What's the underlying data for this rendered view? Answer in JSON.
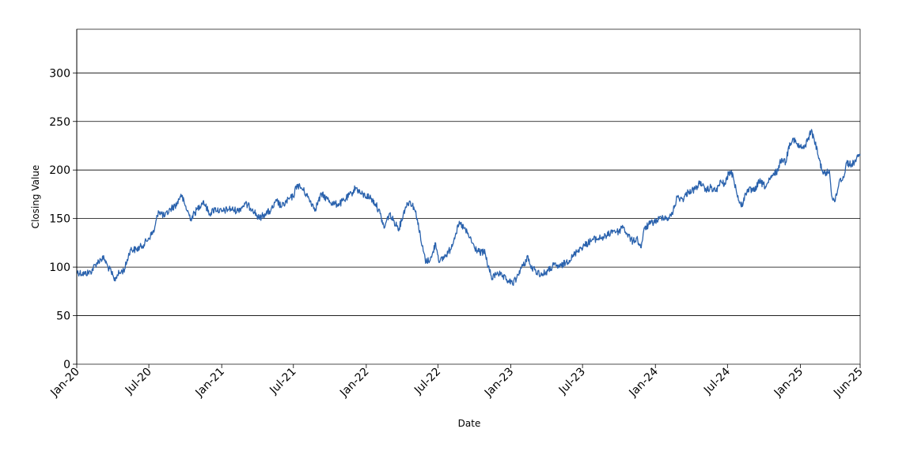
{
  "chart_data": {
    "type": "line",
    "title": "",
    "xlabel": "Date",
    "ylabel": "Closing Value",
    "x_start": "2020-01-01",
    "x_end": "2025-06-01",
    "xticks": [
      {
        "date": "2020-01-01",
        "label": "Jan-20"
      },
      {
        "date": "2020-07-01",
        "label": "Jul-20"
      },
      {
        "date": "2021-01-01",
        "label": "Jan-21"
      },
      {
        "date": "2021-07-01",
        "label": "Jul-21"
      },
      {
        "date": "2022-01-01",
        "label": "Jan-22"
      },
      {
        "date": "2022-07-01",
        "label": "Jul-22"
      },
      {
        "date": "2023-01-01",
        "label": "Jan-23"
      },
      {
        "date": "2023-07-01",
        "label": "Jul-23"
      },
      {
        "date": "2024-01-01",
        "label": "Jan-24"
      },
      {
        "date": "2024-07-01",
        "label": "Jul-24"
      },
      {
        "date": "2025-01-01",
        "label": "Jan-25"
      },
      {
        "date": "2025-06-01",
        "label": "Jun-25"
      }
    ],
    "yticks": [
      0,
      50,
      100,
      150,
      200,
      250,
      300
    ],
    "ylim": [
      0,
      345
    ],
    "grid": "horizontal",
    "line_color": "#2a62ad",
    "series": [
      {
        "points": [
          [
            "2020-01-01",
            95
          ],
          [
            "2020-01-20",
            93
          ],
          [
            "2020-02-05",
            95
          ],
          [
            "2020-02-20",
            104
          ],
          [
            "2020-03-01",
            108
          ],
          [
            "2020-03-10",
            109
          ],
          [
            "2020-03-20",
            100
          ],
          [
            "2020-03-28",
            95
          ],
          [
            "2020-04-05",
            86
          ],
          [
            "2020-04-12",
            92
          ],
          [
            "2020-04-22",
            95
          ],
          [
            "2020-05-01",
            98
          ],
          [
            "2020-05-15",
            118
          ],
          [
            "2020-05-30",
            118
          ],
          [
            "2020-06-15",
            122
          ],
          [
            "2020-07-01",
            130
          ],
          [
            "2020-07-15",
            138
          ],
          [
            "2020-07-25",
            158
          ],
          [
            "2020-08-10",
            152
          ],
          [
            "2020-08-25",
            160
          ],
          [
            "2020-09-10",
            165
          ],
          [
            "2020-09-20",
            175
          ],
          [
            "2020-10-01",
            163
          ],
          [
            "2020-10-15",
            150
          ],
          [
            "2020-11-01",
            160
          ],
          [
            "2020-11-15",
            168
          ],
          [
            "2020-12-01",
            155
          ],
          [
            "2020-12-15",
            160
          ],
          [
            "2021-01-01",
            157
          ],
          [
            "2021-01-20",
            160
          ],
          [
            "2021-02-10",
            158
          ],
          [
            "2021-03-01",
            165
          ],
          [
            "2021-03-20",
            160
          ],
          [
            "2021-04-05",
            150
          ],
          [
            "2021-04-20",
            155
          ],
          [
            "2021-05-05",
            158
          ],
          [
            "2021-05-20",
            168
          ],
          [
            "2021-06-01",
            162
          ],
          [
            "2021-06-20",
            170
          ],
          [
            "2021-07-01",
            173
          ],
          [
            "2021-07-10",
            185
          ],
          [
            "2021-07-25",
            180
          ],
          [
            "2021-08-10",
            170
          ],
          [
            "2021-08-25",
            160
          ],
          [
            "2021-09-10",
            175
          ],
          [
            "2021-09-25",
            170
          ],
          [
            "2021-10-10",
            165
          ],
          [
            "2021-10-25",
            165
          ],
          [
            "2021-11-10",
            170
          ],
          [
            "2021-11-25",
            176
          ],
          [
            "2021-12-05",
            182
          ],
          [
            "2021-12-20",
            175
          ],
          [
            "2022-01-10",
            172
          ],
          [
            "2022-01-25",
            165
          ],
          [
            "2022-02-05",
            155
          ],
          [
            "2022-02-15",
            140
          ],
          [
            "2022-02-28",
            155
          ],
          [
            "2022-03-10",
            148
          ],
          [
            "2022-03-25",
            140
          ],
          [
            "2022-04-10",
            162
          ],
          [
            "2022-04-20",
            168
          ],
          [
            "2022-05-01",
            162
          ],
          [
            "2022-05-10",
            150
          ],
          [
            "2022-05-20",
            125
          ],
          [
            "2022-06-01",
            105
          ],
          [
            "2022-06-15",
            110
          ],
          [
            "2022-06-25",
            125
          ],
          [
            "2022-07-05",
            105
          ],
          [
            "2022-07-20",
            112
          ],
          [
            "2022-08-01",
            118
          ],
          [
            "2022-08-15",
            135
          ],
          [
            "2022-08-25",
            145
          ],
          [
            "2022-09-05",
            140
          ],
          [
            "2022-09-20",
            130
          ],
          [
            "2022-10-01",
            120
          ],
          [
            "2022-10-15",
            115
          ],
          [
            "2022-10-28",
            115
          ],
          [
            "2022-11-05",
            100
          ],
          [
            "2022-11-15",
            88
          ],
          [
            "2022-11-28",
            95
          ],
          [
            "2022-12-10",
            90
          ],
          [
            "2022-12-25",
            86
          ],
          [
            "2023-01-05",
            83
          ],
          [
            "2023-01-15",
            88
          ],
          [
            "2023-01-25",
            98
          ],
          [
            "2023-02-05",
            103
          ],
          [
            "2023-02-12",
            112
          ],
          [
            "2023-02-20",
            100
          ],
          [
            "2023-03-05",
            96
          ],
          [
            "2023-03-20",
            92
          ],
          [
            "2023-04-05",
            96
          ],
          [
            "2023-04-20",
            102
          ],
          [
            "2023-05-05",
            100
          ],
          [
            "2023-05-20",
            105
          ],
          [
            "2023-06-05",
            110
          ],
          [
            "2023-06-20",
            118
          ],
          [
            "2023-07-05",
            122
          ],
          [
            "2023-07-25",
            128
          ],
          [
            "2023-08-15",
            130
          ],
          [
            "2023-09-01",
            132
          ],
          [
            "2023-09-15",
            138
          ],
          [
            "2023-10-01",
            136
          ],
          [
            "2023-10-10",
            143
          ],
          [
            "2023-10-20",
            135
          ],
          [
            "2023-11-05",
            126
          ],
          [
            "2023-11-15",
            130
          ],
          [
            "2023-11-25",
            120
          ],
          [
            "2023-12-05",
            140
          ],
          [
            "2023-12-20",
            145
          ],
          [
            "2024-01-05",
            148
          ],
          [
            "2024-01-20",
            152
          ],
          [
            "2024-02-05",
            150
          ],
          [
            "2024-02-15",
            158
          ],
          [
            "2024-02-25",
            172
          ],
          [
            "2024-03-10",
            170
          ],
          [
            "2024-03-25",
            178
          ],
          [
            "2024-04-10",
            180
          ],
          [
            "2024-04-25",
            188
          ],
          [
            "2024-05-05",
            178
          ],
          [
            "2024-05-20",
            182
          ],
          [
            "2024-06-01",
            178
          ],
          [
            "2024-06-15",
            188
          ],
          [
            "2024-06-25",
            185
          ],
          [
            "2024-07-05",
            198
          ],
          [
            "2024-07-15",
            195
          ],
          [
            "2024-07-25",
            175
          ],
          [
            "2024-08-05",
            162
          ],
          [
            "2024-08-20",
            180
          ],
          [
            "2024-09-05",
            178
          ],
          [
            "2024-09-20",
            188
          ],
          [
            "2024-10-05",
            183
          ],
          [
            "2024-10-20",
            192
          ],
          [
            "2024-11-05",
            200
          ],
          [
            "2024-11-15",
            212
          ],
          [
            "2024-11-25",
            208
          ],
          [
            "2024-12-05",
            228
          ],
          [
            "2024-12-15",
            232
          ],
          [
            "2024-12-25",
            225
          ],
          [
            "2025-01-10",
            222
          ],
          [
            "2025-01-20",
            232
          ],
          [
            "2025-01-28",
            240
          ],
          [
            "2025-02-05",
            232
          ],
          [
            "2025-02-15",
            215
          ],
          [
            "2025-02-25",
            200
          ],
          [
            "2025-03-05",
            195
          ],
          [
            "2025-03-15",
            200
          ],
          [
            "2025-03-22",
            172
          ],
          [
            "2025-03-30",
            168
          ],
          [
            "2025-04-10",
            190
          ],
          [
            "2025-04-20",
            192
          ],
          [
            "2025-04-28",
            208
          ],
          [
            "2025-05-10",
            205
          ],
          [
            "2025-05-20",
            210
          ],
          [
            "2025-06-01",
            215
          ]
        ]
      }
    ]
  }
}
